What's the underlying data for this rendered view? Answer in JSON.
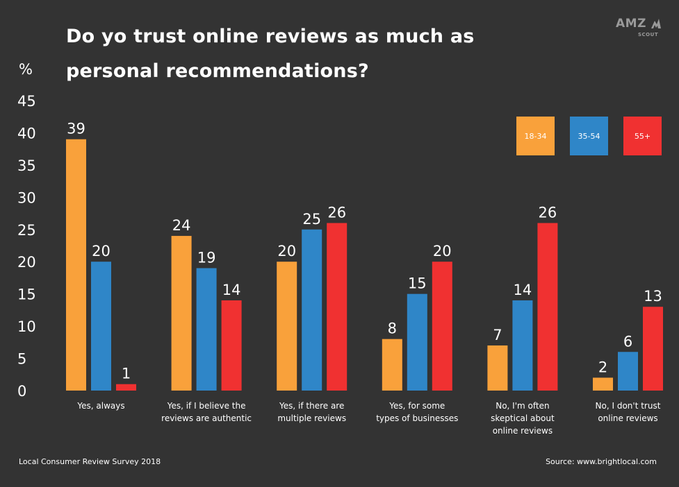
{
  "title": "Do yo trust online reviews as much as personal recommendations?",
  "unit_label": "%",
  "logo": {
    "main": "AMZ",
    "sub": "SCOUT"
  },
  "footer": {
    "left": "Local Consumer Review Survey 2018",
    "right": "Source: www.brightlocal.com"
  },
  "colors": {
    "background": "#333333",
    "orange": "#f9a13b",
    "blue": "#2f86c8",
    "red": "#f03131"
  },
  "chart_data": {
    "type": "bar",
    "title": "Do yo trust online reviews as much as personal recommendations?",
    "ylabel": "%",
    "ylim": [
      0,
      45
    ],
    "yticks": [
      0,
      5,
      10,
      15,
      20,
      25,
      30,
      35,
      40,
      45
    ],
    "grid": false,
    "legend_position": "top-right",
    "categories": [
      [
        "Yes, always"
      ],
      [
        "Yes, if I believe the",
        "reviews are authentic"
      ],
      [
        "Yes, if there are",
        "multiple reviews"
      ],
      [
        "Yes, for some",
        "types of businesses"
      ],
      [
        "No, I'm often",
        "skeptical about",
        "online reviews"
      ],
      [
        "No, I don't trust",
        "online reviews"
      ]
    ],
    "series": [
      {
        "name": "18-34",
        "color": "#f9a13b",
        "values": [
          39,
          24,
          20,
          8,
          7,
          2
        ]
      },
      {
        "name": "35-54",
        "color": "#2f86c8",
        "values": [
          20,
          19,
          25,
          15,
          14,
          6
        ]
      },
      {
        "name": "55+",
        "color": "#f03131",
        "values": [
          1,
          14,
          26,
          20,
          26,
          13
        ]
      }
    ]
  }
}
